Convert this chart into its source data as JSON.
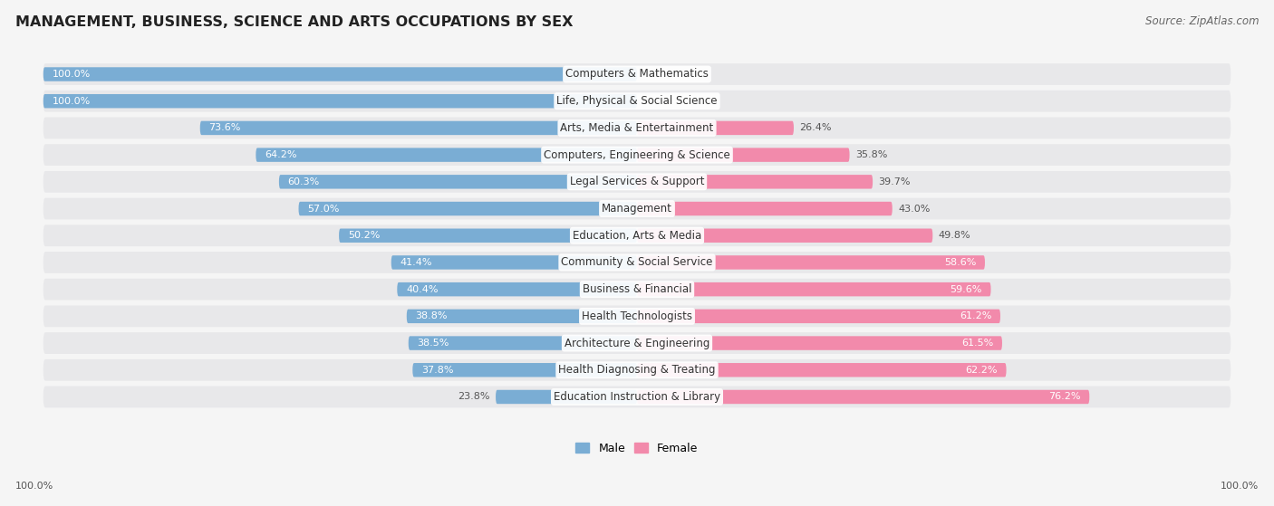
{
  "title": "MANAGEMENT, BUSINESS, SCIENCE AND ARTS OCCUPATIONS BY SEX",
  "source": "Source: ZipAtlas.com",
  "categories": [
    "Computers & Mathematics",
    "Life, Physical & Social Science",
    "Arts, Media & Entertainment",
    "Computers, Engineering & Science",
    "Legal Services & Support",
    "Management",
    "Education, Arts & Media",
    "Community & Social Service",
    "Business & Financial",
    "Health Technologists",
    "Architecture & Engineering",
    "Health Diagnosing & Treating",
    "Education Instruction & Library"
  ],
  "male_pct": [
    100.0,
    100.0,
    73.6,
    64.2,
    60.3,
    57.0,
    50.2,
    41.4,
    40.4,
    38.8,
    38.5,
    37.8,
    23.8
  ],
  "female_pct": [
    0.0,
    0.0,
    26.4,
    35.8,
    39.7,
    43.0,
    49.8,
    58.6,
    59.6,
    61.2,
    61.5,
    62.2,
    76.2
  ],
  "male_color": "#7aadd4",
  "female_color": "#f28aab",
  "row_bg_color": "#e8e8ea",
  "page_bg_color": "#f5f5f5",
  "title_fontsize": 11.5,
  "source_fontsize": 8.5,
  "cat_fontsize": 8.5,
  "val_fontsize": 8.0,
  "legend_fontsize": 9
}
